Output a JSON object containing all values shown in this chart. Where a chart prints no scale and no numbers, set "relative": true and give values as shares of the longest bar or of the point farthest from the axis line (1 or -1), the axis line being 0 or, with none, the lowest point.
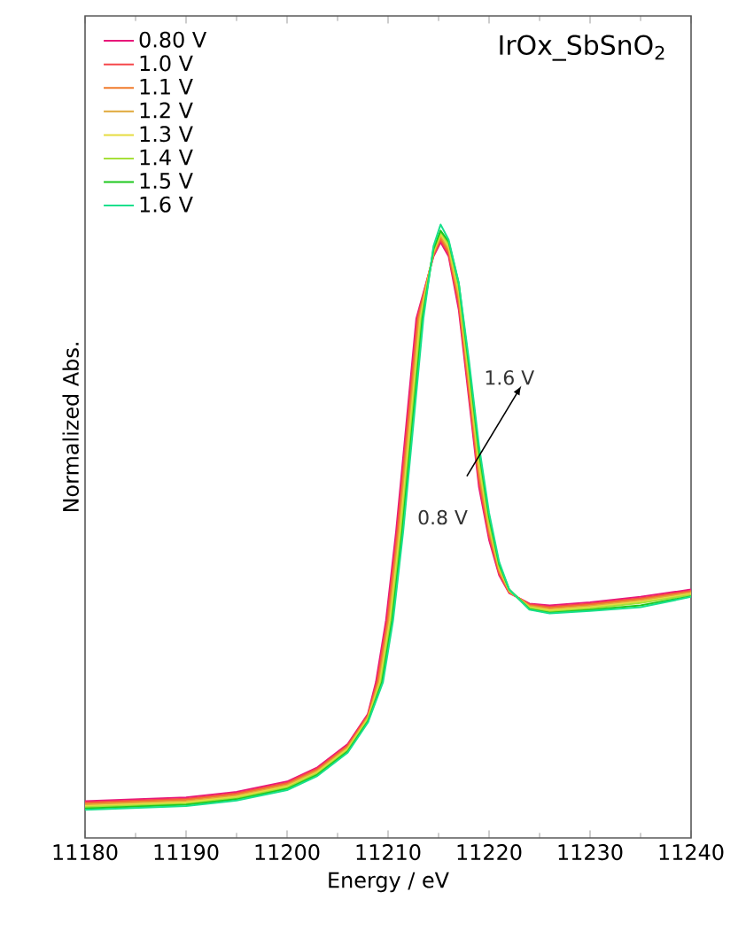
{
  "chart_data": {
    "type": "line",
    "title": "IrOx_SbSnO$_{2}$",
    "xlabel": "Energy / eV",
    "ylabel": "Normalized Abs.",
    "relative": true,
    "xlim": [
      11180,
      11240
    ],
    "xticks": [
      11180,
      11190,
      11200,
      11210,
      11220,
      11230,
      11240
    ],
    "legend": "top left",
    "annotations": [
      "0.8 V",
      "1.6 V"
    ],
    "series": [
      {
        "name": "0.80 V",
        "color": "#e8177a",
        "x": [
          11180,
          11190,
          11195,
          11200,
          11203,
          11206,
          11208,
          11208.8,
          11209.8,
          11210.8,
          11211.8,
          11212.8,
          11214.5,
          11215.2,
          11216,
          11217,
          11218,
          11219,
          11220,
          11221,
          11222,
          11224,
          11226,
          11230,
          11235,
          11240
        ],
        "values": [
          0.06,
          0.066,
          0.075,
          0.092,
          0.115,
          0.153,
          0.202,
          0.254,
          0.355,
          0.5,
          0.673,
          0.847,
          0.948,
          0.971,
          0.948,
          0.861,
          0.717,
          0.572,
          0.486,
          0.428,
          0.399,
          0.382,
          0.379,
          0.384,
          0.393,
          0.405
        ]
      },
      {
        "name": "1.0 V",
        "color": "#f5464a",
        "x": [
          11180,
          11190,
          11195,
          11200,
          11203,
          11206,
          11208,
          11208.9,
          11209.9,
          11210.9,
          11211.9,
          11212.9,
          11214.5,
          11215.2,
          11216,
          11217,
          11218,
          11219,
          11220,
          11221,
          11222,
          11224,
          11226,
          11230,
          11235,
          11240
        ],
        "values": [
          0.058,
          0.064,
          0.073,
          0.09,
          0.113,
          0.151,
          0.2,
          0.254,
          0.355,
          0.5,
          0.673,
          0.847,
          0.95,
          0.975,
          0.952,
          0.869,
          0.726,
          0.581,
          0.492,
          0.431,
          0.4,
          0.381,
          0.377,
          0.382,
          0.391,
          0.403
        ]
      },
      {
        "name": "1.1 V",
        "color": "#f07a2a",
        "x": [
          11180,
          11190,
          11195,
          11200,
          11203,
          11206,
          11208,
          11209,
          11210,
          11211,
          11212,
          11213,
          11214.5,
          11215.2,
          11216,
          11217,
          11218,
          11219,
          11220,
          11221,
          11222,
          11224,
          11226,
          11230,
          11235,
          11240
        ],
        "values": [
          0.056,
          0.062,
          0.071,
          0.088,
          0.111,
          0.149,
          0.198,
          0.254,
          0.355,
          0.5,
          0.673,
          0.847,
          0.952,
          0.978,
          0.956,
          0.876,
          0.735,
          0.59,
          0.498,
          0.434,
          0.401,
          0.379,
          0.375,
          0.38,
          0.389,
          0.401
        ]
      },
      {
        "name": "1.2 V",
        "color": "#e0a83a",
        "x": [
          11180,
          11190,
          11195,
          11200,
          11203,
          11206,
          11208,
          11209.1,
          11210.1,
          11211.1,
          11212.1,
          11213.1,
          11214.5,
          11215.2,
          11216,
          11217,
          11218,
          11219,
          11220,
          11221,
          11222,
          11224,
          11226,
          11230,
          11235,
          11240
        ],
        "values": [
          0.054,
          0.06,
          0.069,
          0.086,
          0.109,
          0.147,
          0.196,
          0.254,
          0.355,
          0.5,
          0.673,
          0.847,
          0.954,
          0.982,
          0.96,
          0.883,
          0.744,
          0.6,
          0.504,
          0.437,
          0.402,
          0.378,
          0.373,
          0.378,
          0.387,
          0.4
        ]
      },
      {
        "name": "1.3 V",
        "color": "#e6dc40",
        "x": [
          11180,
          11190,
          11195,
          11200,
          11203,
          11206,
          11208,
          11209.2,
          11210.2,
          11211.2,
          11212.2,
          11213.2,
          11214.5,
          11215.2,
          11216,
          11217,
          11218,
          11219,
          11220,
          11221,
          11222,
          11224,
          11226,
          11230,
          11235,
          11240
        ],
        "values": [
          0.052,
          0.058,
          0.067,
          0.084,
          0.107,
          0.145,
          0.194,
          0.254,
          0.355,
          0.5,
          0.673,
          0.847,
          0.956,
          0.985,
          0.964,
          0.89,
          0.753,
          0.61,
          0.51,
          0.44,
          0.403,
          0.376,
          0.371,
          0.376,
          0.385,
          0.398
        ]
      },
      {
        "name": "1.4 V",
        "color": "#a6e03a",
        "x": [
          11180,
          11190,
          11195,
          11200,
          11203,
          11206,
          11208,
          11209.3,
          11210.3,
          11211.3,
          11212.3,
          11213.3,
          11214.5,
          11215.2,
          11216,
          11217,
          11218,
          11219,
          11220,
          11221,
          11222,
          11224,
          11226,
          11230,
          11235,
          11240
        ],
        "values": [
          0.05,
          0.056,
          0.065,
          0.082,
          0.105,
          0.143,
          0.192,
          0.254,
          0.355,
          0.5,
          0.673,
          0.847,
          0.958,
          0.988,
          0.968,
          0.897,
          0.762,
          0.62,
          0.516,
          0.443,
          0.404,
          0.375,
          0.369,
          0.374,
          0.383,
          0.396
        ]
      },
      {
        "name": "1.5 V",
        "color": "#1ec81e",
        "x": [
          11180,
          11190,
          11195,
          11200,
          11203,
          11206,
          11208,
          11209.4,
          11210.4,
          11211.4,
          11212.4,
          11213.4,
          11214.5,
          11215.2,
          11216,
          11217,
          11218,
          11219,
          11220,
          11221,
          11222,
          11224,
          11226,
          11230,
          11235,
          11240
        ],
        "values": [
          0.048,
          0.054,
          0.063,
          0.08,
          0.103,
          0.141,
          0.19,
          0.254,
          0.355,
          0.5,
          0.673,
          0.847,
          0.96,
          0.99,
          0.972,
          0.904,
          0.771,
          0.63,
          0.523,
          0.446,
          0.405,
          0.373,
          0.367,
          0.372,
          0.379,
          0.394
        ]
      },
      {
        "name": "1.6 V",
        "color": "#18e08c",
        "x": [
          11180,
          11190,
          11195,
          11200,
          11203,
          11206,
          11208,
          11209.5,
          11210.5,
          11211.5,
          11212.5,
          11213.5,
          11214.5,
          11215.2,
          11216,
          11217,
          11218,
          11219,
          11220,
          11221,
          11222,
          11224,
          11226,
          11230,
          11235,
          11240
        ],
        "values": [
          0.046,
          0.052,
          0.061,
          0.078,
          0.101,
          0.139,
          0.188,
          0.254,
          0.355,
          0.5,
          0.673,
          0.847,
          0.965,
          1.0,
          0.975,
          0.905,
          0.78,
          0.64,
          0.53,
          0.45,
          0.405,
          0.372,
          0.366,
          0.37,
          0.376,
          0.393
        ]
      }
    ]
  }
}
